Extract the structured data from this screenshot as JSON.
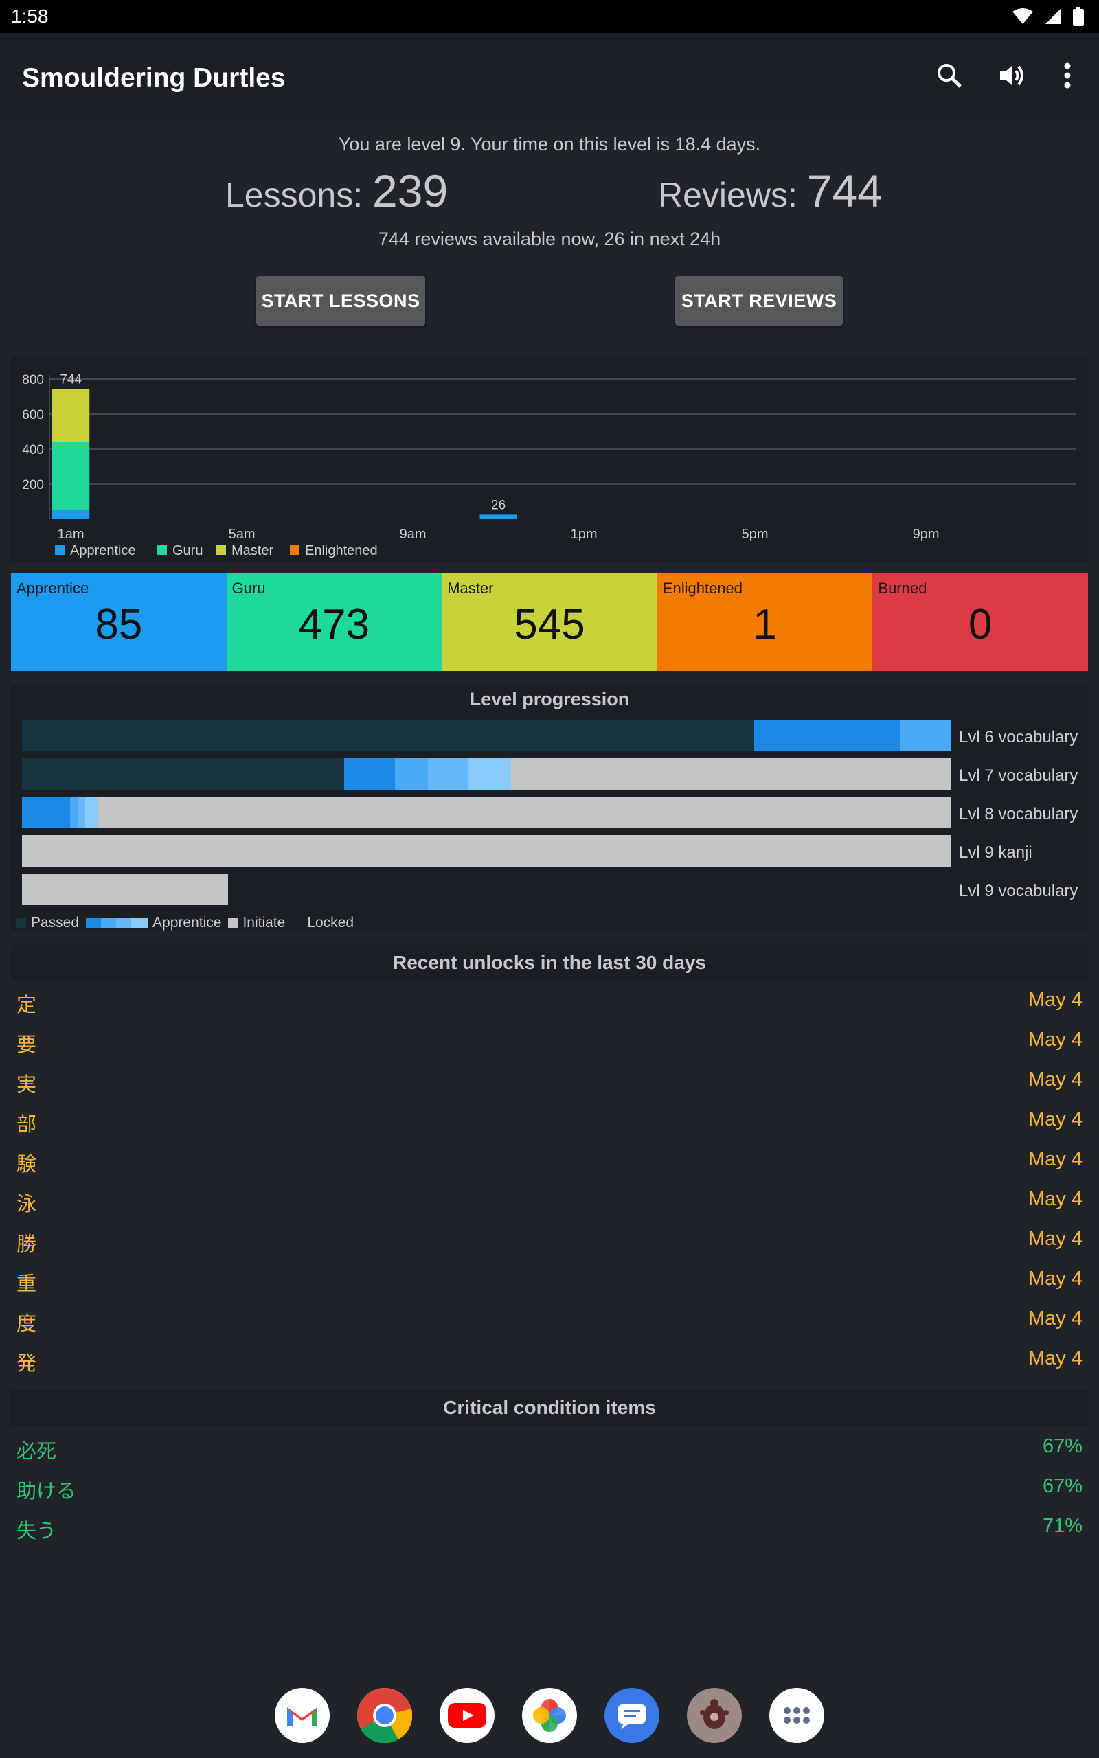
{
  "status": {
    "time": "1:58"
  },
  "app": {
    "title": "Smouldering Durtles"
  },
  "summary": {
    "level_line": "You are level 9. Your time on this level is 18.4 days.",
    "lessons_label": "Lessons:",
    "lessons_count": "239",
    "reviews_label": "Reviews:",
    "reviews_count": "744",
    "available_line": "744 reviews available now, 26 in next 24h",
    "start_lessons": "START LESSONS",
    "start_reviews": "START REVIEWS"
  },
  "chart_data": {
    "type": "bar",
    "stacked": true,
    "y_ticks": [
      "800",
      "600",
      "400",
      "200"
    ],
    "ylim": [
      0,
      800
    ],
    "x_tick_labels": [
      "1am",
      "5am",
      "9am",
      "1pm",
      "5pm",
      "9pm"
    ],
    "bars": [
      {
        "hour": "1am",
        "total_label": "744",
        "segments": {
          "Apprentice": 55,
          "Guru": 385,
          "Master": 304,
          "Enlightened": 0
        }
      },
      {
        "hour": "11am",
        "total_label": "26",
        "segments": {
          "Apprentice": 26,
          "Guru": 0,
          "Master": 0,
          "Enlightened": 0
        }
      }
    ],
    "legend": [
      "Apprentice",
      "Guru",
      "Master",
      "Enlightened"
    ],
    "colors": {
      "Apprentice": "#1d9bf0",
      "Guru": "#1fd99a",
      "Master": "#cad23b",
      "Enlightened": "#f57a00"
    },
    "grid": true,
    "legend_position": "bottom-left"
  },
  "srs": [
    {
      "label": "Apprentice",
      "value": "85",
      "color": "#1d9bf0"
    },
    {
      "label": "Guru",
      "value": "473",
      "color": "#1fd99a"
    },
    {
      "label": "Master",
      "value": "545",
      "color": "#cad23b"
    },
    {
      "label": "Enlightened",
      "value": "1",
      "color": "#f57a00"
    },
    {
      "label": "Burned",
      "value": "0",
      "color": "#dc3b46"
    }
  ],
  "progression": {
    "title": "Level progression",
    "rows": [
      {
        "label": "Lvl 6 vocabulary"
      },
      {
        "label": "Lvl 7 vocabulary"
      },
      {
        "label": "Lvl 8 vocabulary"
      },
      {
        "label": "Lvl 9 kanji"
      },
      {
        "label": "Lvl 9 vocabulary"
      }
    ],
    "legend": {
      "passed": "Passed",
      "apprentice": "Apprentice",
      "initiate": "Initiate",
      "locked": "Locked"
    }
  },
  "recent": {
    "title": "Recent unlocks in the last 30 days",
    "items": [
      {
        "char": "定",
        "date": "May 4"
      },
      {
        "char": "要",
        "date": "May 4"
      },
      {
        "char": "実",
        "date": "May 4"
      },
      {
        "char": "部",
        "date": "May 4"
      },
      {
        "char": "験",
        "date": "May 4"
      },
      {
        "char": "泳",
        "date": "May 4"
      },
      {
        "char": "勝",
        "date": "May 4"
      },
      {
        "char": "重",
        "date": "May 4"
      },
      {
        "char": "度",
        "date": "May 4"
      },
      {
        "char": "発",
        "date": "May 4"
      }
    ]
  },
  "critical": {
    "title": "Critical condition items",
    "items": [
      {
        "item": "必死",
        "pct": "67%"
      },
      {
        "item": "助ける",
        "pct": "67%"
      },
      {
        "item": "失う",
        "pct": "71%"
      }
    ]
  },
  "dock": [
    "gmail-icon",
    "chrome-icon",
    "youtube-icon",
    "photos-icon",
    "messages-icon",
    "durtles-icon",
    "apps-icon"
  ]
}
